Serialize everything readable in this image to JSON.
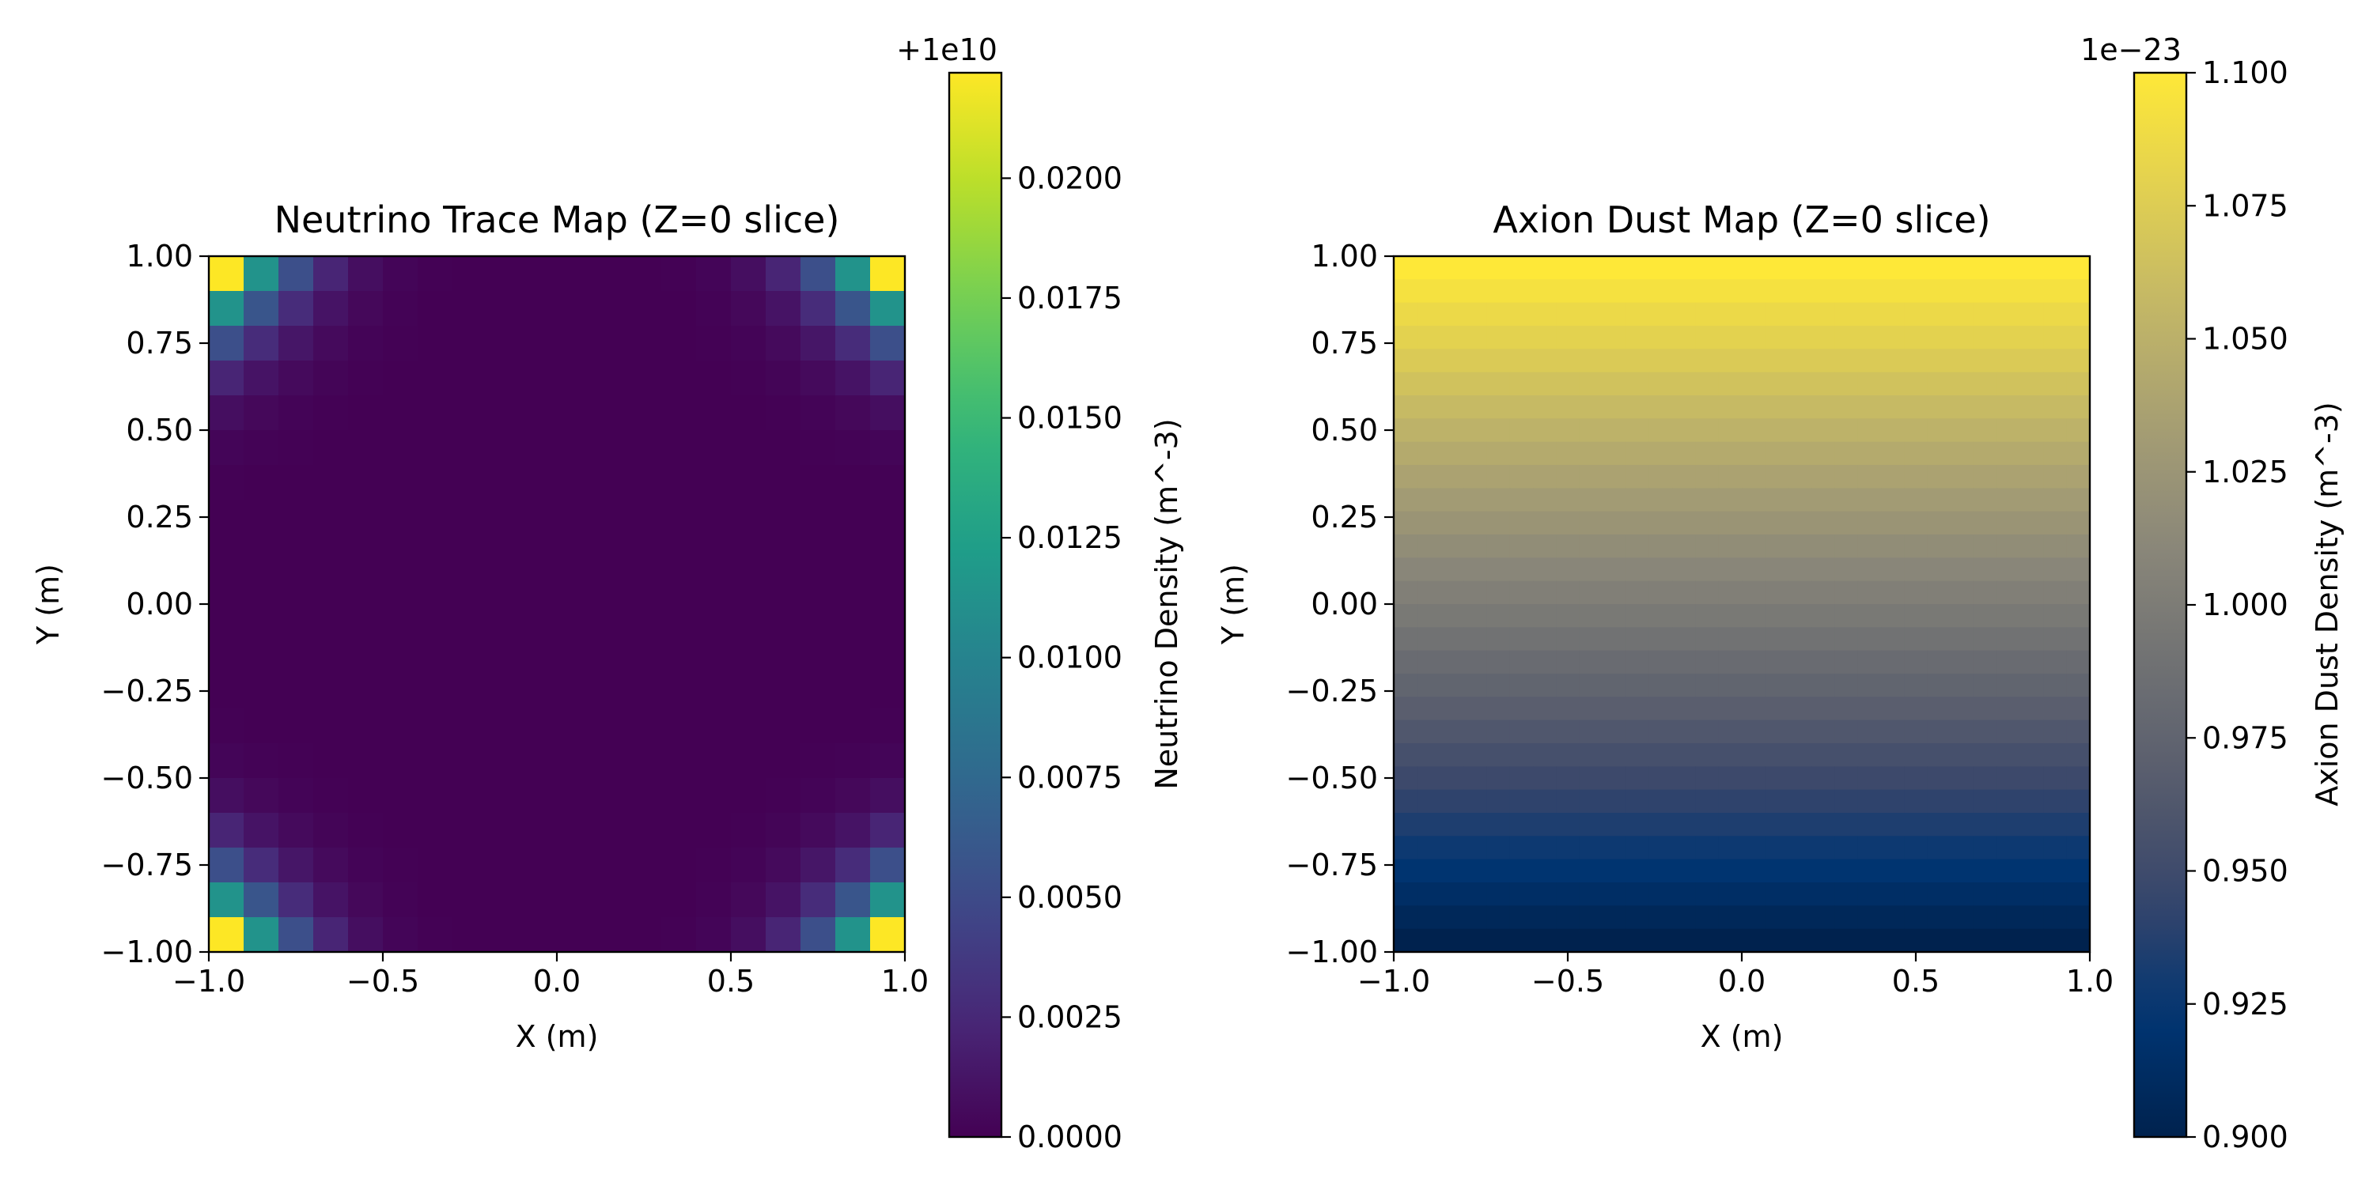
{
  "chart_data": [
    {
      "type": "heatmap",
      "title": "Neutrino Trace Map (Z=0 slice)",
      "xlabel": "X (m)",
      "ylabel": "Y (m)",
      "xlim": [
        -1.0,
        1.0
      ],
      "ylim": [
        -1.0,
        1.0
      ],
      "x_ticks": [
        "−1.0",
        "−0.5",
        "0.0",
        "0.5",
        "1.0"
      ],
      "y_ticks": [
        "−1.00",
        "−0.75",
        "−0.50",
        "−0.25",
        "0.00",
        "0.25",
        "0.50",
        "0.75",
        "1.00"
      ],
      "grid_size": 20,
      "field": "corner_peaks",
      "colormap": "viridis",
      "colorbar": {
        "label": "Neutrino Density (m^-3)",
        "offset_text": "+1e10",
        "range": [
          0.0,
          0.0222
        ],
        "ticks": [
          "0.0000",
          "0.0025",
          "0.0050",
          "0.0075",
          "0.0100",
          "0.0125",
          "0.0150",
          "0.0175",
          "0.0200"
        ]
      },
      "grid": false
    },
    {
      "type": "heatmap",
      "title": "Axion Dust Map (Z=0 slice)",
      "xlabel": "X (m)",
      "ylabel": "Y (m)",
      "xlim": [
        -1.0,
        1.0
      ],
      "ylim": [
        -1.0,
        1.0
      ],
      "x_ticks": [
        "−1.0",
        "−0.5",
        "0.0",
        "0.5",
        "1.0"
      ],
      "y_ticks": [
        "−1.00",
        "−0.75",
        "−0.50",
        "−0.25",
        "0.00",
        "0.25",
        "0.50",
        "0.75",
        "1.00"
      ],
      "grid_size": 30,
      "field": "linear_in_y",
      "colormap": "cividis",
      "colorbar": {
        "label": "Axion Dust Density (m^-3)",
        "offset_text": "1e−23",
        "range": [
          0.9,
          1.1
        ],
        "ticks": [
          "0.900",
          "0.925",
          "0.950",
          "0.975",
          "1.000",
          "1.025",
          "1.050",
          "1.075",
          "1.100"
        ]
      },
      "grid": false
    }
  ]
}
